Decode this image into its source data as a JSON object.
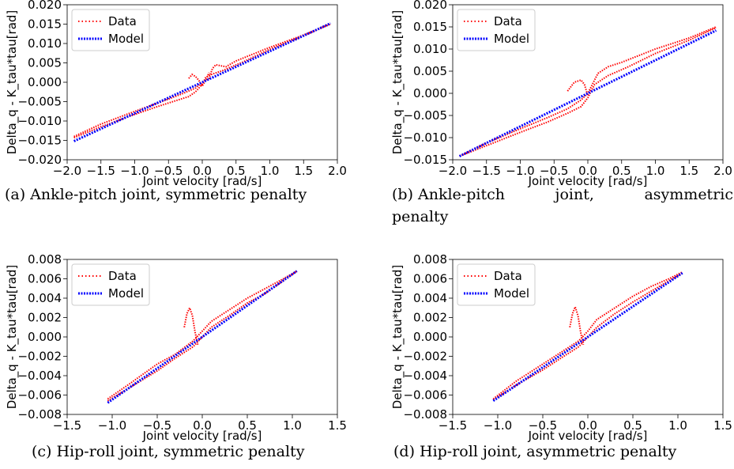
{
  "colors": {
    "data": "#ff0000",
    "model": "#0000ff",
    "axis": "#000000",
    "legend_border": "#cccccc"
  },
  "chart_data": [
    {
      "id": "a",
      "type": "line",
      "caption_label": "(a)",
      "caption_text": "Ankle-pitch joint, symmetric penalty",
      "xlabel": "Joint velocity [rad/s]",
      "ylabel": "Delta_q - K_tau*tau[rad]",
      "xlim": [
        -2.0,
        2.0
      ],
      "ylim": [
        -0.02,
        0.02
      ],
      "xticks": [
        -2.0,
        -1.5,
        -1.0,
        -0.5,
        0.0,
        0.5,
        1.0,
        1.5,
        2.0
      ],
      "xtick_labels": [
        "−2.0",
        "−1.5",
        "−1.0",
        "−0.5",
        "0.0",
        "0.5",
        "1.0",
        "1.5",
        "2.0"
      ],
      "yticks": [
        -0.02,
        -0.015,
        -0.01,
        -0.005,
        0.0,
        0.005,
        0.01,
        0.015,
        0.02
      ],
      "ytick_labels": [
        "−0.020",
        "−0.015",
        "−0.010",
        "−0.005",
        "0.000",
        "0.005",
        "0.010",
        "0.015",
        "0.020"
      ],
      "legend": {
        "position": "upper-left",
        "entries": [
          "Data",
          "Model"
        ]
      },
      "series": [
        {
          "name": "Data",
          "style": "dotted",
          "color": "#ff0000",
          "points": [
            [
              -1.9,
              -0.0143
            ],
            [
              -1.5,
              -0.0115
            ],
            [
              -1.0,
              -0.0083
            ],
            [
              -0.7,
              -0.0065
            ],
            [
              -0.4,
              -0.0048
            ],
            [
              -0.2,
              -0.0037
            ],
            [
              -0.1,
              -0.0025
            ],
            [
              0.0,
              -0.0005
            ],
            [
              0.05,
              0.0012
            ],
            [
              0.1,
              0.0018
            ],
            [
              0.3,
              0.003
            ],
            [
              0.6,
              0.0052
            ],
            [
              1.0,
              0.0085
            ],
            [
              1.5,
              0.012
            ],
            [
              1.9,
              0.015
            ]
          ]
        },
        {
          "name": "Data",
          "style": "dotted",
          "color": "#ff0000",
          "points": [
            [
              -1.9,
              -0.014
            ],
            [
              -1.5,
              -0.0108
            ],
            [
              -1.0,
              -0.0075
            ],
            [
              -0.6,
              -0.005
            ],
            [
              -0.3,
              -0.003
            ],
            [
              -0.1,
              -0.0015
            ],
            [
              0.0,
              0.0
            ],
            [
              0.1,
              0.001
            ],
            [
              0.15,
              0.0035
            ],
            [
              0.2,
              0.0045
            ],
            [
              0.35,
              0.004
            ],
            [
              0.5,
              0.0055
            ],
            [
              1.0,
              0.009
            ],
            [
              1.5,
              0.0122
            ],
            [
              1.9,
              0.0151
            ]
          ]
        },
        {
          "name": "Data",
          "style": "dotted",
          "color": "#ff0000",
          "points": [
            [
              -0.2,
              0.001
            ],
            [
              -0.15,
              0.002
            ],
            [
              -0.1,
              0.0015
            ],
            [
              -0.05,
              0.0005
            ],
            [
              0.0,
              -0.001
            ],
            [
              0.05,
              0.0005
            ],
            [
              0.1,
              0.0025
            ]
          ]
        },
        {
          "name": "Model",
          "style": "dotted",
          "color": "#0000ff",
          "points": [
            [
              -1.9,
              -0.0152
            ],
            [
              1.9,
              0.0152
            ]
          ]
        }
      ]
    },
    {
      "id": "b",
      "type": "line",
      "caption_label": "(b)",
      "caption_text_line1": "Ankle-pitch joint, asymmetric",
      "caption_text_line2": "penalty",
      "xlabel": "Joint velocity [rad/s]",
      "ylabel": "Delta_q - K_tau*tau[rad]",
      "xlim": [
        -2.0,
        2.0
      ],
      "ylim": [
        -0.015,
        0.02
      ],
      "xticks": [
        -2.0,
        -1.5,
        -1.0,
        -0.5,
        0.0,
        0.5,
        1.0,
        1.5,
        2.0
      ],
      "xtick_labels": [
        "−2.0",
        "−1.5",
        "−1.0",
        "−0.5",
        "0.0",
        "0.5",
        "1.0",
        "1.5",
        "2.0"
      ],
      "yticks": [
        -0.015,
        -0.01,
        -0.005,
        0.0,
        0.005,
        0.01,
        0.015,
        0.02
      ],
      "ytick_labels": [
        "−0.015",
        "−0.010",
        "−0.005",
        "0.000",
        "0.005",
        "0.010",
        "0.015",
        "0.020"
      ],
      "legend": {
        "position": "upper-left",
        "entries": [
          "Data",
          "Model"
        ]
      },
      "series": [
        {
          "name": "Data",
          "style": "dotted",
          "color": "#ff0000",
          "points": [
            [
              -1.9,
              -0.0142
            ],
            [
              -1.5,
              -0.0118
            ],
            [
              -1.0,
              -0.0088
            ],
            [
              -0.6,
              -0.0065
            ],
            [
              -0.3,
              -0.0045
            ],
            [
              -0.1,
              -0.003
            ],
            [
              0.0,
              -0.001
            ],
            [
              0.1,
              0.002
            ],
            [
              0.3,
              0.004
            ],
            [
              0.6,
              0.006
            ],
            [
              1.0,
              0.009
            ],
            [
              1.5,
              0.012
            ],
            [
              1.9,
              0.0148
            ]
          ]
        },
        {
          "name": "Data",
          "style": "dotted",
          "color": "#ff0000",
          "points": [
            [
              -1.9,
              -0.0142
            ],
            [
              -1.5,
              -0.0112
            ],
            [
              -1.0,
              -0.008
            ],
            [
              -0.6,
              -0.0055
            ],
            [
              -0.3,
              -0.0035
            ],
            [
              -0.1,
              -0.0015
            ],
            [
              0.0,
              0.0
            ],
            [
              0.15,
              0.0045
            ],
            [
              0.3,
              0.006
            ],
            [
              0.5,
              0.007
            ],
            [
              1.0,
              0.01
            ],
            [
              1.5,
              0.0125
            ],
            [
              1.9,
              0.015
            ]
          ]
        },
        {
          "name": "Data",
          "style": "dotted",
          "color": "#ff0000",
          "points": [
            [
              -0.3,
              0.0005
            ],
            [
              -0.2,
              0.0025
            ],
            [
              -0.1,
              0.003
            ],
            [
              -0.05,
              0.002
            ],
            [
              0.0,
              -0.0005
            ],
            [
              0.05,
              0.001
            ]
          ]
        },
        {
          "name": "Model",
          "style": "dotted",
          "color": "#0000ff",
          "points": [
            [
              -1.9,
              -0.0142
            ],
            [
              1.9,
              0.0142
            ]
          ]
        }
      ]
    },
    {
      "id": "c",
      "type": "line",
      "caption_label": "(c)",
      "caption_text": "Hip-roll joint, symmetric penalty",
      "xlabel": "Joint velocity [rad/s]",
      "ylabel": "Delta_q - K_tau*tau[rad]",
      "xlim": [
        -1.5,
        1.5
      ],
      "ylim": [
        -0.008,
        0.008
      ],
      "xticks": [
        -1.5,
        -1.0,
        -0.5,
        0.0,
        0.5,
        1.0,
        1.5
      ],
      "xtick_labels": [
        "−1.5",
        "−1.0",
        "−0.5",
        "0.0",
        "0.5",
        "1.0",
        "1.5"
      ],
      "yticks": [
        -0.008,
        -0.006,
        -0.004,
        -0.002,
        0.0,
        0.002,
        0.004,
        0.006,
        0.008
      ],
      "ytick_labels": [
        "−0.008",
        "−0.006",
        "−0.004",
        "−0.002",
        "0.000",
        "0.002",
        "0.004",
        "0.006",
        "0.008"
      ],
      "legend": {
        "position": "upper-left",
        "entries": [
          "Data",
          "Model"
        ]
      },
      "series": [
        {
          "name": "Data",
          "style": "dotted",
          "color": "#ff0000",
          "points": [
            [
              -1.05,
              -0.0066
            ],
            [
              -0.8,
              -0.0052
            ],
            [
              -0.5,
              -0.0035
            ],
            [
              -0.3,
              -0.0022
            ],
            [
              -0.1,
              -0.001
            ],
            [
              0.0,
              0.0
            ],
            [
              0.1,
              0.001
            ],
            [
              0.3,
              0.0022
            ],
            [
              0.5,
              0.0035
            ],
            [
              0.7,
              0.0045
            ],
            [
              0.9,
              0.0058
            ],
            [
              1.05,
              0.0068
            ]
          ]
        },
        {
          "name": "Data",
          "style": "dotted",
          "color": "#ff0000",
          "points": [
            [
              -1.05,
              -0.0064
            ],
            [
              -0.8,
              -0.0048
            ],
            [
              -0.5,
              -0.0028
            ],
            [
              -0.3,
              -0.0018
            ],
            [
              -0.1,
              -0.0004
            ],
            [
              0.0,
              0.0006
            ],
            [
              0.1,
              0.0016
            ],
            [
              0.3,
              0.0028
            ],
            [
              0.5,
              0.004
            ],
            [
              0.7,
              0.005
            ],
            [
              0.9,
              0.006
            ],
            [
              1.05,
              0.0068
            ]
          ]
        },
        {
          "name": "Data",
          "style": "dotted",
          "color": "#ff0000",
          "points": [
            [
              -0.2,
              0.001
            ],
            [
              -0.17,
              0.0024
            ],
            [
              -0.14,
              0.003
            ],
            [
              -0.11,
              0.0022
            ],
            [
              -0.08,
              0.0005
            ],
            [
              -0.05,
              -0.0008
            ]
          ]
        },
        {
          "name": "Model",
          "style": "dotted",
          "color": "#0000ff",
          "points": [
            [
              -1.05,
              -0.0068
            ],
            [
              1.05,
              0.0068
            ]
          ]
        }
      ]
    },
    {
      "id": "d",
      "type": "line",
      "caption_label": "(d)",
      "caption_text": "Hip-roll joint, asymmetric penalty",
      "xlabel": "Joint velocity [rad/s]",
      "ylabel": "Delta_q - K_tau*tau[rad]",
      "xlim": [
        -1.5,
        1.5
      ],
      "ylim": [
        -0.008,
        0.008
      ],
      "xticks": [
        -1.5,
        -1.0,
        -0.5,
        0.0,
        0.5,
        1.0,
        1.5
      ],
      "xtick_labels": [
        "−1.5",
        "−1.0",
        "−0.5",
        "0.0",
        "0.5",
        "1.0",
        "1.5"
      ],
      "yticks": [
        -0.008,
        -0.006,
        -0.004,
        -0.002,
        0.0,
        0.002,
        0.004,
        0.006,
        0.008
      ],
      "ytick_labels": [
        "−0.008",
        "−0.006",
        "−0.004",
        "−0.002",
        "0.000",
        "0.002",
        "0.004",
        "0.006",
        "0.008"
      ],
      "legend": {
        "position": "upper-left",
        "entries": [
          "Data",
          "Model"
        ]
      },
      "series": [
        {
          "name": "Data",
          "style": "dotted",
          "color": "#ff0000",
          "points": [
            [
              -1.05,
              -0.0065
            ],
            [
              -0.8,
              -0.005
            ],
            [
              -0.5,
              -0.0034
            ],
            [
              -0.3,
              -0.0022
            ],
            [
              -0.1,
              -0.001
            ],
            [
              0.0,
              0.0
            ],
            [
              0.1,
              0.001
            ],
            [
              0.3,
              0.0024
            ],
            [
              0.5,
              0.0036
            ],
            [
              0.7,
              0.0047
            ],
            [
              0.9,
              0.0058
            ],
            [
              1.05,
              0.0066
            ]
          ]
        },
        {
          "name": "Data",
          "style": "dotted",
          "color": "#ff0000",
          "points": [
            [
              -1.05,
              -0.0064
            ],
            [
              -0.8,
              -0.0046
            ],
            [
              -0.5,
              -0.0028
            ],
            [
              -0.3,
              -0.0016
            ],
            [
              -0.1,
              -0.0004
            ],
            [
              0.0,
              0.0006
            ],
            [
              0.1,
              0.0018
            ],
            [
              0.3,
              0.003
            ],
            [
              0.5,
              0.0042
            ],
            [
              0.7,
              0.0052
            ],
            [
              0.9,
              0.006
            ],
            [
              1.05,
              0.0067
            ]
          ]
        },
        {
          "name": "Data",
          "style": "dotted",
          "color": "#ff0000",
          "points": [
            [
              -0.2,
              0.001
            ],
            [
              -0.17,
              0.0024
            ],
            [
              -0.14,
              0.0031
            ],
            [
              -0.11,
              0.0022
            ],
            [
              -0.08,
              0.0005
            ],
            [
              -0.05,
              -0.0008
            ]
          ]
        },
        {
          "name": "Model",
          "style": "dotted",
          "color": "#0000ff",
          "points": [
            [
              -1.05,
              -0.0066
            ],
            [
              1.05,
              0.0066
            ]
          ]
        }
      ]
    }
  ]
}
